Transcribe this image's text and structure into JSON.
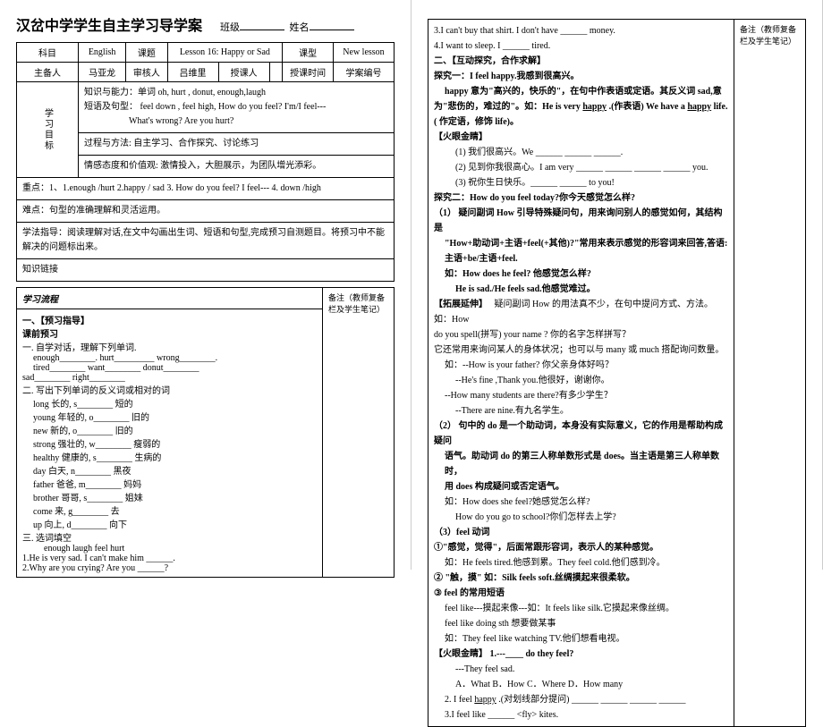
{
  "title": "汉岔中学学生自主学习导学案",
  "class_label": "班级",
  "name_label": "姓名",
  "header": {
    "subject_label": "科目",
    "subject": "English",
    "topic_label": "课题",
    "topic": "Lesson 16: Happy or Sad",
    "type_label": "课型",
    "type": "New lesson",
    "preparer_label": "主备人",
    "preparer": "马亚龙",
    "reviewer_label": "审核人",
    "reviewer": "吕维里",
    "teacher_label": "授课人",
    "time_label": "授课时间",
    "plan_label": "学案编号"
  },
  "goals": {
    "title": "学习目标",
    "knowledge": "知识与能力：单词 oh, hurt , donut, enough,laugh",
    "knowledge2": "短语及句型：     feel down , feel high, How do you feel?     I'm/I feel---",
    "knowledge3": "What's wrong?      Are you hurt?",
    "process": "过程与方法: 自主学习、合作探究、讨论练习",
    "attitude": "情感态度和价值观: 激情投入，大胆展示，为团队增光添彩。"
  },
  "keypoints": "重点：1、1.enough /hurt 2.happy / sad 3. How do you feel?    I feel--- 4. down /high",
  "difficulties": "难点：句型的准确理解和灵活运用。",
  "method": "学法指导：阅读理解对话,在文中勾画出生词、短语和句型,完成预习自测题目。将预习中不能解决的问题标出来。",
  "tip": "知识链接",
  "flow_title": "学习流程",
  "note_label": "备注（教师复备栏及学生笔记）",
  "preview": {
    "title": "一、【预习指导】",
    "subtitle": "课前预习",
    "task1": "一.  自学对话，理解下列单词.",
    "words": [
      "enough________.    hurt_________    wrong________.",
      "tired________    want________    donut________",
      "sad________    right________"
    ],
    "task2": "二. 写出下列单词的反义词或相对的词",
    "pairs": [
      "long  长的,    s________ 短的",
      "young 年轻的,    o________ 旧的",
      "new 新的,    o________ 旧的",
      "strong 强壮的,    w________ 瘦弱的",
      "healthy 健康的,    s________ 生病的",
      "day 白天,    n________ 黑夜",
      "father 爸爸,    m________ 妈妈",
      "brother 哥哥,    s________ 姐妹",
      "come 来,    g________ 去",
      "up 向上,    d________ 向下"
    ],
    "task3": "三. 选词填空",
    "choices": "enough    laugh    feel    hurt",
    "q1": "1.He is very sad. I can't make him ______.",
    "q2": "2.Why are you crying? Are you ______?"
  },
  "right": {
    "q3": "3.I can't buy that shirt. I don't have ______ money.",
    "q4": "4.I want to sleep. I ______ tired.",
    "section2": "二、【互动探究，合作求解】",
    "explore1_title": "探究一：I feel happy.我感到很高兴。",
    "explore1_1": "happy 意为\"高兴的，快乐的\"，在句中作表语或定语。其反义词 sad,意",
    "explore1_2": "为\"悲伤的，难过的\"。如：He is very",
    "explore1_2b": "happy",
    "explore1_2c": ".(作表语) We have a",
    "explore1_2d": "happy",
    "explore1_2e": "life.( 作定语，修饰 life)。",
    "fire1": "【火眼金睛】",
    "fire1_1": "(1) 我们很高兴。We    ______  ______  ______.",
    "fire1_2": "(2) 见到你我很高心。I am very ______  ______  ______  ______ you.",
    "fire1_3": "(3) 祝你生日快乐。______  ______  to you!",
    "explore2_title": "探究二：How do you feel today?你今天感觉怎么样?",
    "explore2_1": "（1）  疑问副词 How 引导特殊疑问句，用来询问别人的感觉如何，其结构是",
    "explore2_2": "\"How+助动词+主语+feel(+其他)?\"常用来表示感觉的形容词来回答,答语:",
    "explore2_3": "主语+be/主语+feel.",
    "explore2_4": "如：How does he feel?  他感觉怎么样?",
    "explore2_5": "He is sad./He feels sad.他感觉难过。",
    "extend": "【拓展延伸】",
    "extend1": "疑问副词 How 的用法真不少，在句中提问方式、方法。如：How",
    "extend2": "do you spell(拼写) your name ?  你的名字怎样拼写？",
    "extend3": "它还常用来询问某人的身体状况；也可以与 many 或 much 搭配询问数量。",
    "extend4": "如：--How is your father?  你父亲身体好吗？",
    "extend5": "--He's fine ,Thank you.他很好，谢谢你。",
    "extend6": "--How many students are there?有多少学生？",
    "extend7": "--There are nine.有九名学生。",
    "point2": "（2）  句中的 do 是一个助动词，本身没有实际意义，它的作用是帮助构成疑问",
    "point2_1": "语气。助动词 do 的第三人称单数形式是 does。当主语是第三人称单数时，",
    "point2_2": "用 does 构成疑问或否定语气。",
    "point2_3": "如：How does she feel?她感觉怎么样?",
    "point2_4": "How do you go to school?你们怎样去上学?",
    "point3": "（3）feel  动词",
    "point3_1": "①\"感觉，觉得\"，后面常跟形容词，表示人的某种感觉。",
    "point3_2": "如：He feels tired.他感到累。They feel cold.他们感到冷。",
    "point3_3": "②  \"触，摸\"  如：Silk feels soft.丝绸摸起来很柔软。",
    "point3_4": "③  feel 的常用短语",
    "point3_5": "feel like---摸起来像---如：It feels like silk.它摸起来像丝绸。",
    "point3_6": "feel like doing sth  想要做某事",
    "point3_7": "如：They feel like watching TV.他们想看电视。",
    "fire2": "【火眼金睛】",
    "fire2_1": "1.---____ do they feel?",
    "fire2_2": "---They feel sad.",
    "fire2_3": "A．What    B．How    C．Where   D．How many",
    "fire2_4": "2.  I feel",
    "fire2_4b": "happy",
    "fire2_4c": ".(对划线部分提问) ______  ______  ______  ______",
    "fire2_5": "3.I feel like ______ <fly> kites."
  }
}
